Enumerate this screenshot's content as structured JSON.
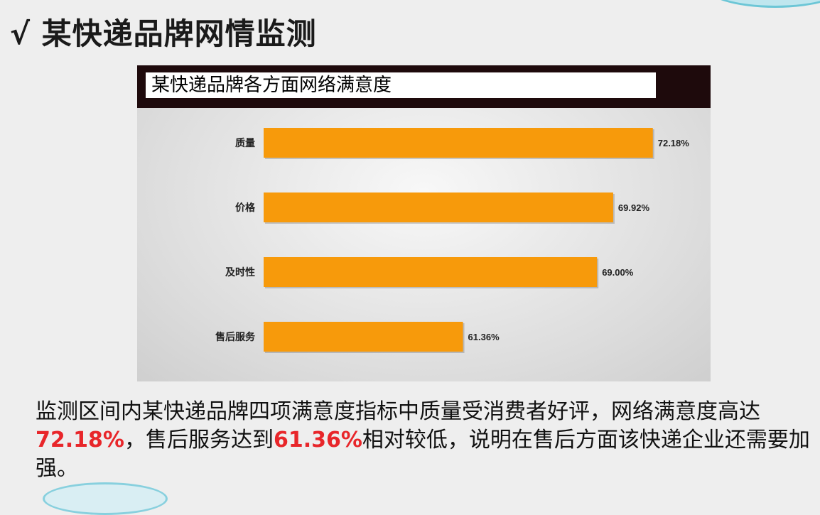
{
  "slide": {
    "title": "√ 某快递品牌网情监测"
  },
  "summary": {
    "part1": "监测区间内某快递品牌四项满意度指标中质量受消费者好评，网络满意度高达",
    "highlight1": "72.18%",
    "part2": "，售后服务达到",
    "highlight2": "61.36%",
    "part3": "相对较低，说明在售后方面该快递企业还需要加强。"
  },
  "colors": {
    "bar": "#f79a0b",
    "highlight": "#e8262a",
    "header": "#1e0a0c"
  },
  "chart_data": {
    "type": "bar",
    "orientation": "horizontal",
    "title": "某快递品牌各方面网络满意度",
    "categories": [
      "质量",
      "价格",
      "及时性",
      "售后服务"
    ],
    "values": [
      72.18,
      69.92,
      69.0,
      61.36
    ],
    "value_labels": [
      "72.18%",
      "69.92%",
      "69.00%",
      "61.36%"
    ],
    "xlim": [
      50,
      73
    ],
    "grid": false,
    "legend": "none"
  }
}
